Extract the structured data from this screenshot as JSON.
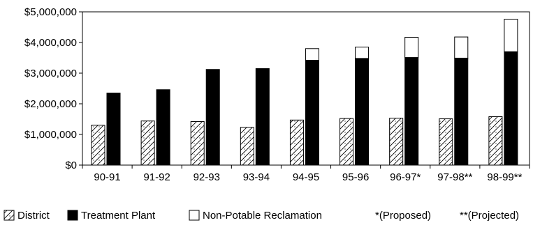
{
  "chart_data": {
    "type": "bar",
    "stacked_series": [
      "Treatment Plant",
      "Non-Potable Reclamation"
    ],
    "categories": [
      "90-91",
      "91-92",
      "92-93",
      "93-94",
      "94-95",
      "95-96",
      "96-97*",
      "97-98**",
      "98-99**"
    ],
    "series": [
      {
        "name": "District",
        "values": [
          1300000,
          1440000,
          1420000,
          1230000,
          1470000,
          1520000,
          1530000,
          1510000,
          1580000
        ],
        "pattern": "hatched-dotted",
        "color": "#ffffff"
      },
      {
        "name": "Treatment Plant",
        "values": [
          2350000,
          2460000,
          3120000,
          3150000,
          3420000,
          3480000,
          3510000,
          3490000,
          3700000
        ],
        "color": "#000000"
      },
      {
        "name": "Non-Potable Reclamation",
        "values": [
          0,
          0,
          0,
          0,
          380000,
          370000,
          660000,
          690000,
          1060000
        ],
        "color": "#ffffff"
      }
    ],
    "y_ticks": [
      "$0",
      "$1,000,000",
      "$2,000,000",
      "$3,000,000",
      "$4,000,000",
      "$5,000,000"
    ],
    "ylim": [
      0,
      5000000
    ],
    "title": "",
    "xlabel": "",
    "ylabel": "",
    "grid": false,
    "legend_position": "bottom",
    "legend": [
      {
        "label": "District",
        "swatch": "hatched-dotted"
      },
      {
        "label": "Treatment Plant",
        "swatch": "solid-black"
      },
      {
        "label": "Non-Potable Reclamation",
        "swatch": "white"
      }
    ],
    "footnotes": [
      "*(Proposed)",
      "**(Projected)"
    ]
  }
}
